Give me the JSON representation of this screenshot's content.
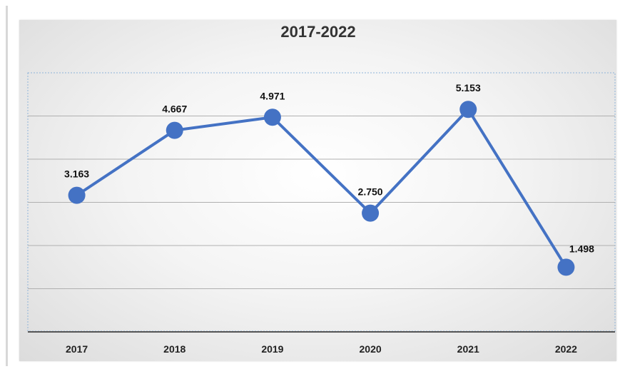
{
  "chart_data": {
    "type": "line",
    "title": "2017-2022",
    "categories": [
      "2017",
      "2018",
      "2019",
      "2020",
      "2021",
      "2022"
    ],
    "series": [
      {
        "values": [
          3.163,
          4.667,
          4.971,
          2.75,
          5.153,
          1.498
        ]
      }
    ],
    "data_labels": [
      "3.163",
      "4.667",
      "4.971",
      "2.750",
      "5.153",
      "1.498"
    ],
    "ylim": [
      0,
      6
    ],
    "grid": true,
    "legend": "none",
    "colors": {
      "line": "#4472c4",
      "marker": "#4472c4",
      "grid": "#b0b0b0",
      "axis": "#555555"
    }
  }
}
